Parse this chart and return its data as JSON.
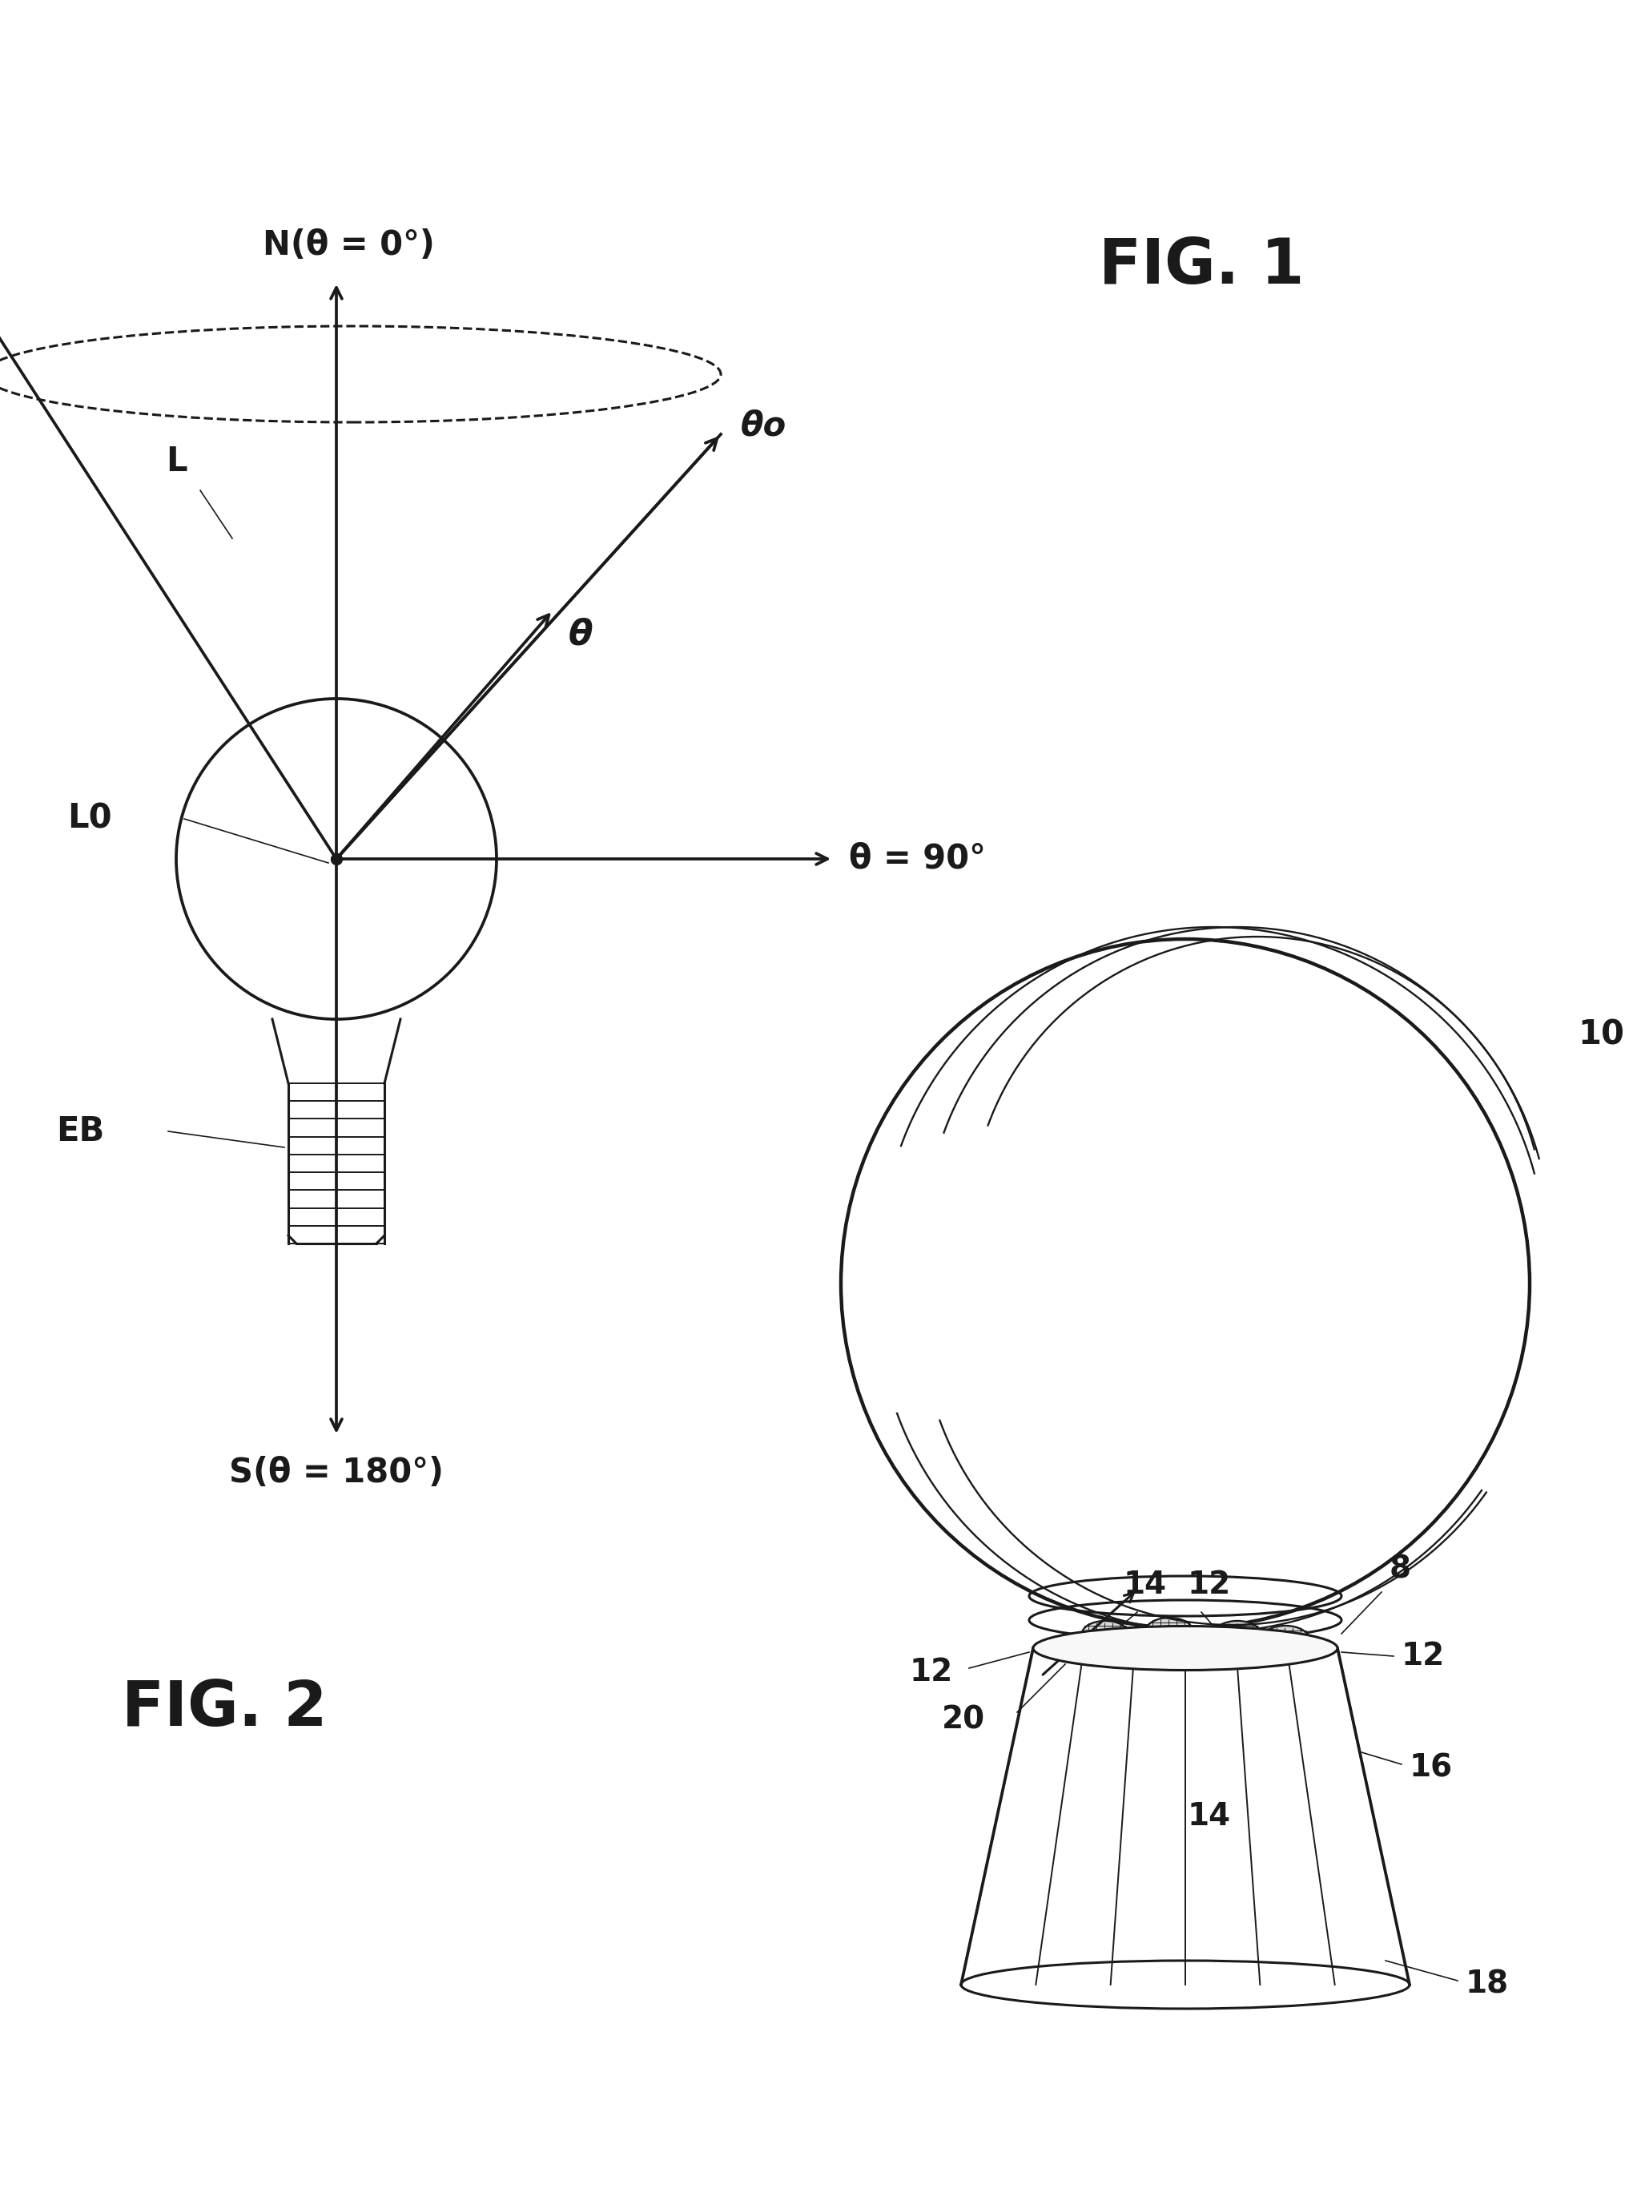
{
  "fig_width": 20.34,
  "fig_height": 27.52,
  "bg_color": "#ffffff",
  "line_color": "#1a1a1a",
  "lw": 2.2,
  "fig1_label": "FIG. 1",
  "fig2_label": "FIG. 2",
  "N_label": "N(θ = 0°)",
  "S_label": "S(θ = 180°)",
  "theta90_label": "θ = 90°",
  "thetao_label": "θo",
  "theta_label": "θ",
  "L_label": "L",
  "L0_label": "L0",
  "EB_label": "EB",
  "label_10": "10",
  "label_8": "8",
  "label_12": "12",
  "label_14": "14",
  "label_16": "16",
  "label_18": "18",
  "label_20": "20"
}
